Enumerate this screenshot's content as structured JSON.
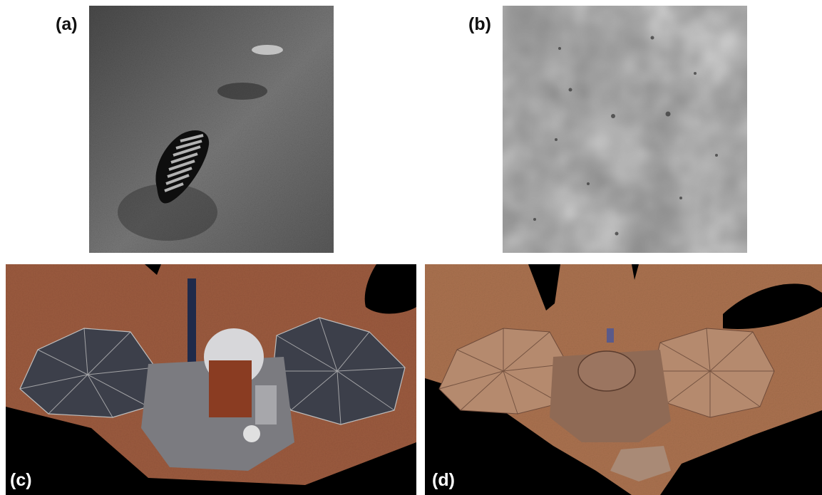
{
  "figure": {
    "panels": [
      {
        "id": "a",
        "label": "(a)",
        "label_color": "#111111",
        "content": "footprint-in-lunar-regolith"
      },
      {
        "id": "b",
        "label": "(b)",
        "label_color": "#111111",
        "content": "cratered-grey-surface"
      },
      {
        "id": "c",
        "label": "(c)",
        "label_color": "#ffffff",
        "content": "lander-clean-solar-panels"
      },
      {
        "id": "d",
        "label": "(d)",
        "label_color": "#ffffff",
        "content": "lander-dusty-solar-panels"
      }
    ],
    "colors": {
      "background": "#ffffff",
      "regolith_dark": "#2a2a2a",
      "regolith_light": "#8c8c8c",
      "mars_ground": "#9a5a3e",
      "mars_ground_dusty": "#a8704e",
      "panel_blue": "#3c3f4a",
      "panel_dusty": "#b58a6e"
    }
  }
}
